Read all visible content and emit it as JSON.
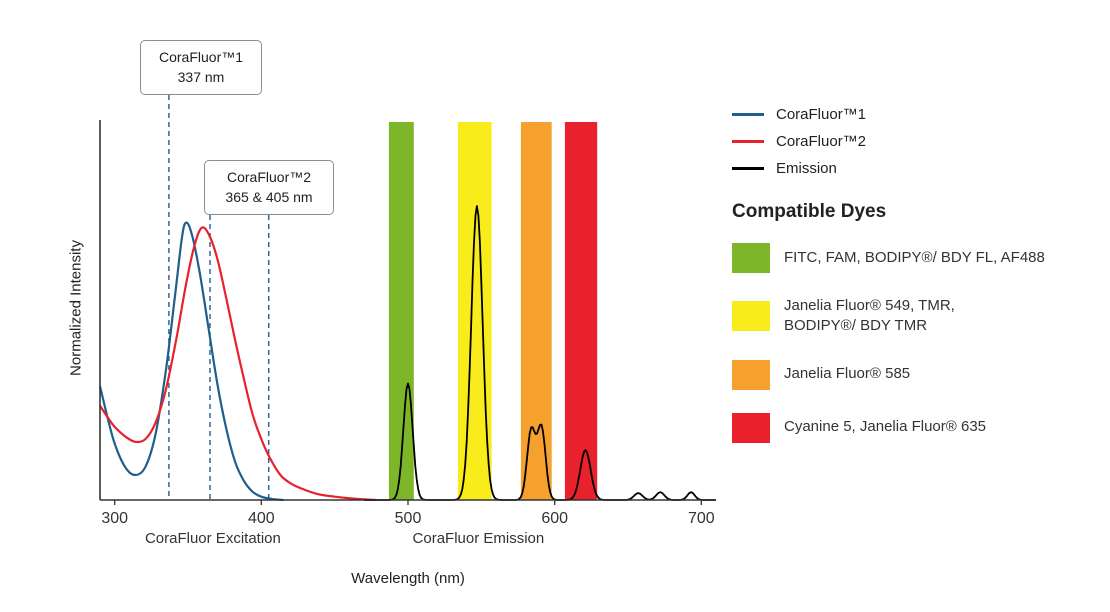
{
  "legend": {
    "items": [
      {
        "label": "CoraFluor™1",
        "color": "#1f5f8b"
      },
      {
        "label": "CoraFluor™2",
        "color": "#e8212d"
      },
      {
        "label": "Emission",
        "color": "#000000"
      }
    ]
  },
  "dyes": {
    "heading": "Compatible Dyes",
    "items": [
      {
        "label": "FITC, FAM, BODIPY®/ BDY FL, AF488",
        "color": "#7db629"
      },
      {
        "label": "Janelia Fluor® 549, TMR,\nBODIPY®/ BDY TMR",
        "color": "#f8ec1a"
      },
      {
        "label": "Janelia Fluor® 585",
        "color": "#f6a12e"
      },
      {
        "label": "Cyanine 5, Janelia Fluor® 635",
        "color": "#e8212d"
      }
    ]
  },
  "chart_data": {
    "type": "line",
    "title": "",
    "xlabel": "Wavelength (nm)",
    "ylabel": "Normalized Intensity",
    "xlim": [
      290,
      710
    ],
    "ylim": [
      0,
      1.37
    ],
    "grid": false,
    "legend_position": "right",
    "x_ticks": [
      300,
      400,
      500,
      600,
      700
    ],
    "x_region_labels": [
      {
        "text": "CoraFluor Excitation",
        "x": 367
      },
      {
        "text": "CoraFluor Emission",
        "x": 548
      }
    ],
    "annotations": [
      {
        "line1": "CoraFluor™1",
        "line2": "337 nm",
        "lines_nm": [
          337
        ]
      },
      {
        "line1": "CoraFluor™2",
        "line2": "365 & 405 nm",
        "lines_nm": [
          365,
          405
        ]
      }
    ],
    "excitation_lines_nm": [
      337,
      365,
      405
    ],
    "excitation_line_color": "#2f6699",
    "filter_bands": [
      {
        "name": "fitc-fam-bodipyfl-af488",
        "color": "#7db629",
        "x0": 487,
        "x1": 504
      },
      {
        "name": "jf549-tmr-bodipytmr",
        "color": "#f8ec1a",
        "x0": 534,
        "x1": 557
      },
      {
        "name": "jf585",
        "color": "#f6a12e",
        "x0": 577,
        "x1": 598
      },
      {
        "name": "cy5-jf635",
        "color": "#e8212d",
        "x0": 607,
        "x1": 629
      }
    ],
    "series": [
      {
        "name": "CoraFluor™1",
        "kind": "points",
        "color": "#1f5f8b",
        "points": [
          [
            290,
            0.41
          ],
          [
            299,
            0.22
          ],
          [
            307,
            0.12
          ],
          [
            314,
            0.09
          ],
          [
            321,
            0.12
          ],
          [
            328,
            0.24
          ],
          [
            335,
            0.47
          ],
          [
            341,
            0.73
          ],
          [
            346,
            0.95
          ],
          [
            349,
            1.0
          ],
          [
            353,
            0.95
          ],
          [
            358,
            0.82
          ],
          [
            364,
            0.62
          ],
          [
            370,
            0.42
          ],
          [
            376,
            0.26
          ],
          [
            382,
            0.14
          ],
          [
            388,
            0.07
          ],
          [
            394,
            0.03
          ],
          [
            400,
            0.012
          ],
          [
            407,
            0.004
          ],
          [
            415,
            0.0
          ]
        ]
      },
      {
        "name": "CoraFluor™2",
        "kind": "points",
        "color": "#e8212d",
        "points": [
          [
            290,
            0.34
          ],
          [
            299,
            0.27
          ],
          [
            307,
            0.23
          ],
          [
            314,
            0.21
          ],
          [
            321,
            0.22
          ],
          [
            328,
            0.28
          ],
          [
            335,
            0.4
          ],
          [
            342,
            0.58
          ],
          [
            348,
            0.76
          ],
          [
            354,
            0.91
          ],
          [
            359,
            0.98
          ],
          [
            364,
            0.96
          ],
          [
            370,
            0.87
          ],
          [
            376,
            0.73
          ],
          [
            382,
            0.58
          ],
          [
            388,
            0.44
          ],
          [
            394,
            0.31
          ],
          [
            400,
            0.22
          ],
          [
            406,
            0.15
          ],
          [
            413,
            0.09
          ],
          [
            420,
            0.06
          ],
          [
            428,
            0.04
          ],
          [
            438,
            0.022
          ],
          [
            450,
            0.012
          ],
          [
            463,
            0.005
          ],
          [
            478,
            0.0
          ]
        ]
      },
      {
        "name": "Emission",
        "kind": "gaussian_peaks",
        "color": "#000000",
        "range": [
          470,
          710
        ],
        "peaks": [
          {
            "center": 500,
            "height": 0.42,
            "width": 4.5
          },
          {
            "center": 547,
            "height": 1.06,
            "width": 5.5
          },
          {
            "center": 584,
            "height": 0.25,
            "width": 4
          },
          {
            "center": 591,
            "height": 0.26,
            "width": 4
          },
          {
            "center": 621,
            "height": 0.18,
            "width": 5
          },
          {
            "center": 657,
            "height": 0.025,
            "width": 4
          },
          {
            "center": 672,
            "height": 0.028,
            "width": 4
          },
          {
            "center": 693,
            "height": 0.028,
            "width": 3.5
          }
        ]
      }
    ]
  }
}
